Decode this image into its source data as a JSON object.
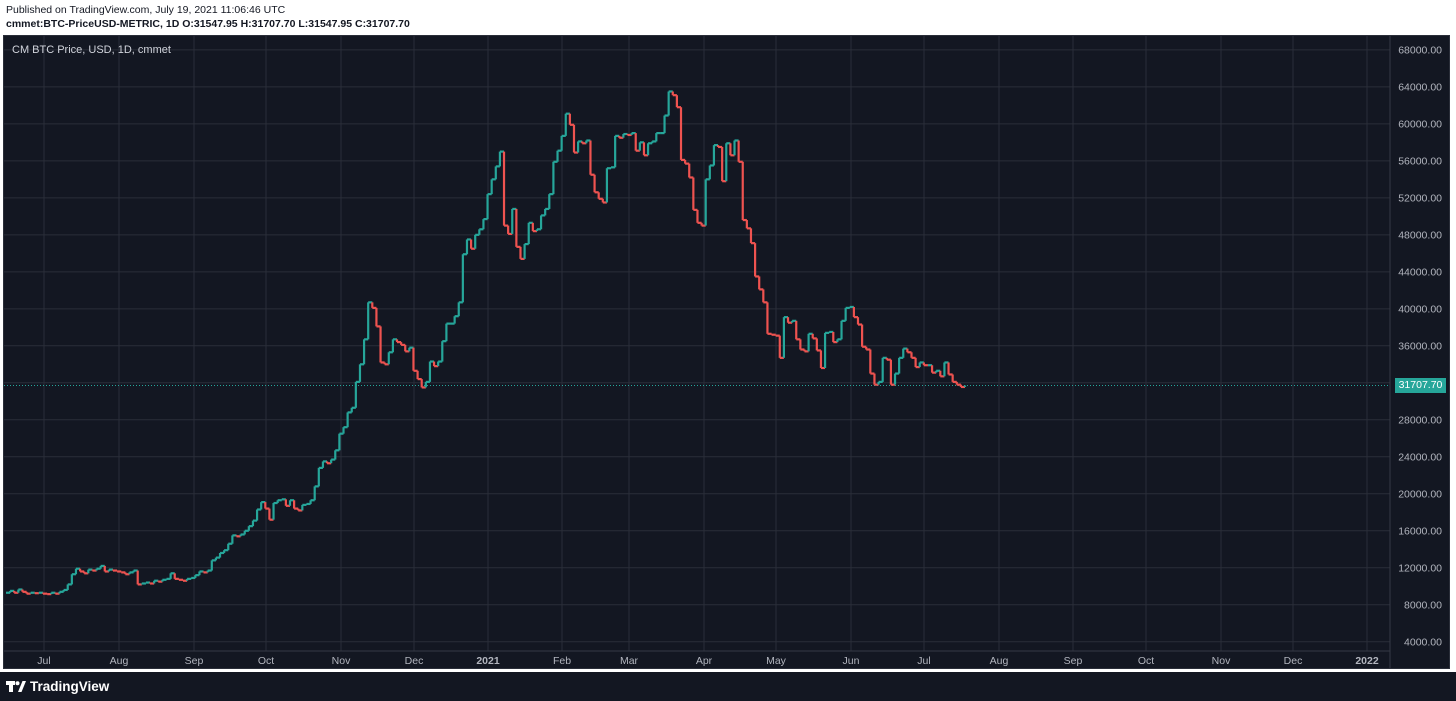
{
  "header": {
    "published": "Published on TradingView.com, July 19, 2021 11:06:46 UTC",
    "symbol_line": "cmmet:BTC-PriceUSD-METRIC, 1D O:31547.95 H:31707.70 L:31547.95 C:31707.70"
  },
  "legend": "CM BTC Price, USD, 1D, cmmet",
  "footer": {
    "brand": "TradingView"
  },
  "colors": {
    "up": "#26a69a",
    "down": "#ef5350",
    "background": "#131722",
    "grid": "#2a2e39",
    "axis_text": "#b2b5be"
  },
  "chart_data": {
    "type": "line",
    "title": "",
    "xlabel": "",
    "ylabel": "",
    "ylim": [
      3000,
      69500
    ],
    "y_ticks": [
      "68000.00",
      "64000.00",
      "60000.00",
      "56000.00",
      "52000.00",
      "48000.00",
      "44000.00",
      "40000.00",
      "36000.00",
      "32000.00",
      "28000.00",
      "24000.00",
      "20000.00",
      "16000.00",
      "12000.00",
      "8000.00",
      "4000.00"
    ],
    "x_ticks": [
      "Jul",
      "Aug",
      "Sep",
      "Oct",
      "Nov",
      "Dec",
      "2021",
      "Feb",
      "Mar",
      "Apr",
      "May",
      "Jun",
      "Jul",
      "Aug",
      "Sep",
      "Oct",
      "Nov",
      "Dec",
      "2022"
    ],
    "last_value": "31707.70",
    "series": [
      {
        "values": [
          9300,
          9500,
          9300,
          9650,
          9400,
          9200,
          9300,
          9250,
          9300,
          9200,
          9150,
          9300,
          9200,
          9400,
          9600,
          10200,
          11300,
          11900,
          11600,
          11400,
          11800,
          11700,
          11900,
          12200,
          11600,
          11800,
          11700,
          11600,
          11500,
          11300,
          11500,
          11700,
          10200,
          10300,
          10400,
          10300,
          10600,
          10500,
          10700,
          10800,
          11400,
          10800,
          10700,
          10600,
          10800,
          10900,
          11200,
          11600,
          11500,
          11700,
          12800,
          13100,
          13600,
          13900,
          14600,
          15500,
          15400,
          15600,
          16000,
          16500,
          17100,
          18300,
          19100,
          18400,
          17200,
          19000,
          19300,
          19400,
          18700,
          19300,
          18400,
          18200,
          18800,
          18900,
          19300,
          20800,
          22800,
          23500,
          23300,
          23700,
          24700,
          26500,
          27200,
          28800,
          29300,
          32100,
          34000,
          36700,
          40700,
          40100,
          38100,
          34200,
          34000,
          35300,
          36700,
          36400,
          36100,
          35400,
          35800,
          33300,
          32400,
          31500,
          32100,
          34300,
          33800,
          34300,
          36500,
          38400,
          38400,
          39200,
          40700,
          45900,
          47500,
          46500,
          48000,
          48600,
          49700,
          52400,
          54000,
          55400,
          57000,
          49000,
          48100,
          50800,
          46700,
          45400,
          47000,
          49300,
          48400,
          48600,
          50100,
          50800,
          52400,
          55900,
          57100,
          58700,
          61100,
          59900,
          56900,
          58100,
          57900,
          58200,
          54500,
          52600,
          51900,
          51500,
          55200,
          55300,
          58700,
          58500,
          58900,
          58800,
          59000,
          57100,
          58000,
          56600,
          57900,
          58100,
          59000,
          59000,
          60900,
          63500,
          63100,
          61800,
          56100,
          55700,
          54200,
          50700,
          49300,
          49000,
          54000,
          55500,
          57700,
          57500,
          53800,
          57900,
          56600,
          58200,
          55900,
          49600,
          48700,
          47100,
          43500,
          42100,
          40700,
          37300,
          37200,
          37100,
          34700,
          39100,
          38500,
          38700,
          36700,
          35600,
          35400,
          37300,
          36800,
          35500,
          33600,
          37400,
          37500,
          36400,
          36700,
          38700,
          40100,
          40200,
          39100,
          38300,
          35900,
          35600,
          33000,
          31800,
          32100,
          34700,
          34500,
          31800,
          33000,
          34700,
          35700,
          35300,
          34700,
          33700,
          34200,
          33900,
          33900,
          33100,
          33300,
          32700,
          34200,
          32900,
          32100,
          31800,
          31550,
          31708
        ]
      }
    ]
  }
}
